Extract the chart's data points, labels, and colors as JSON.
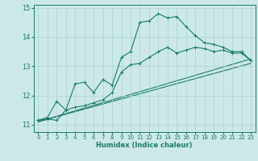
{
  "xlabel": "Humidex (Indice chaleur)",
  "bg_color": "#cce8e8",
  "line_color": "#1a7a6a",
  "grid_color": "#aad4d4",
  "xlim": [
    -0.5,
    23.5
  ],
  "ylim": [
    10.75,
    15.1
  ],
  "yticks": [
    11,
    12,
    13,
    14,
    15
  ],
  "xticks": [
    0,
    1,
    2,
    3,
    4,
    5,
    6,
    7,
    8,
    9,
    10,
    11,
    12,
    13,
    14,
    15,
    16,
    17,
    18,
    19,
    20,
    21,
    22,
    23
  ],
  "series1_x": [
    0,
    1,
    2,
    3,
    4,
    5,
    6,
    7,
    8,
    9,
    10,
    11,
    12,
    13,
    14,
    15,
    16,
    17,
    18,
    19,
    20,
    21,
    22,
    23
  ],
  "series1_y": [
    11.15,
    11.25,
    11.8,
    11.5,
    12.4,
    12.45,
    12.1,
    12.55,
    12.35,
    13.3,
    13.5,
    14.5,
    14.55,
    14.8,
    14.65,
    14.7,
    14.35,
    14.05,
    13.8,
    13.75,
    13.65,
    13.5,
    13.5,
    13.2
  ],
  "series2_x": [
    0,
    1,
    2,
    3,
    4,
    5,
    6,
    7,
    8,
    9,
    10,
    11,
    12,
    13,
    14,
    15,
    16,
    17,
    18,
    19,
    20,
    21,
    22,
    23
  ],
  "series2_y": [
    11.15,
    11.2,
    11.15,
    11.5,
    11.6,
    11.65,
    11.75,
    11.85,
    12.1,
    12.8,
    13.05,
    13.1,
    13.3,
    13.5,
    13.65,
    13.45,
    13.55,
    13.65,
    13.6,
    13.5,
    13.55,
    13.45,
    13.45,
    13.2
  ],
  "series3_x": [
    0,
    23
  ],
  "series3_y": [
    11.1,
    13.25
  ],
  "series4_x": [
    0,
    23
  ],
  "series4_y": [
    11.1,
    13.1
  ]
}
